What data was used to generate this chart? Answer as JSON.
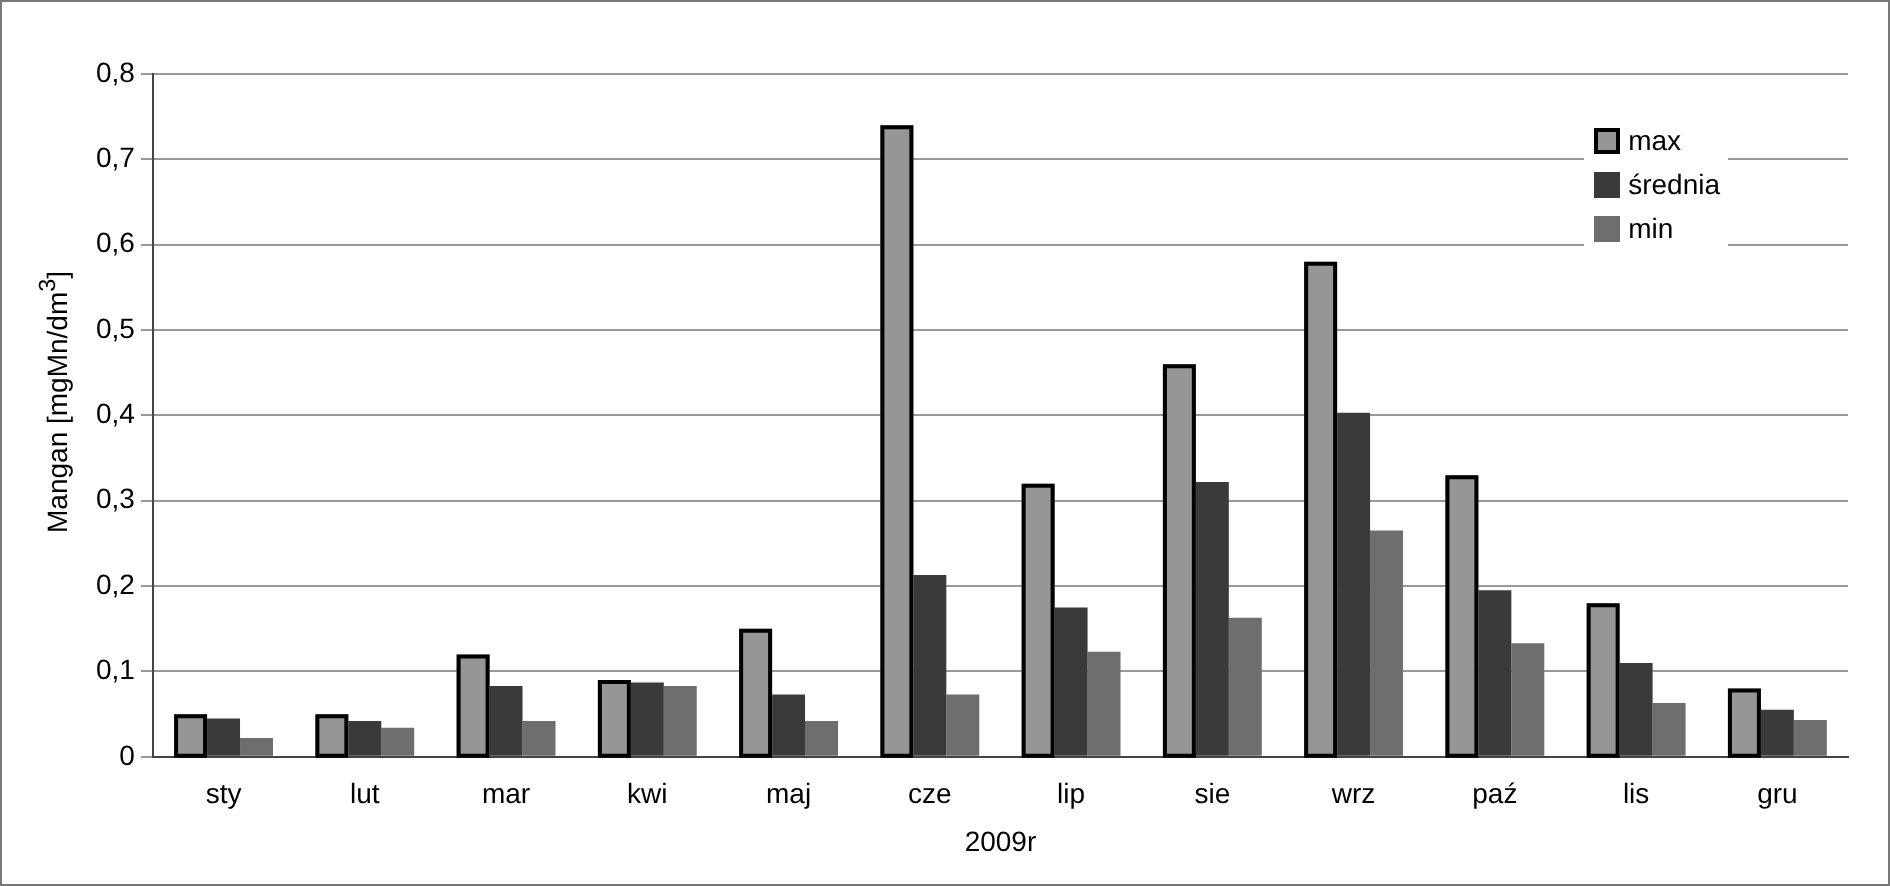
{
  "chart_data": {
    "type": "bar",
    "xlabel": "2009r",
    "ylabel": "Mangan [mgMn/dm$^{3}$]",
    "categories": [
      "sty",
      "lut",
      "mar",
      "kwi",
      "maj",
      "cze",
      "lip",
      "sie",
      "wrz",
      "paź",
      "lis",
      "gru"
    ],
    "series": [
      {
        "name": "max",
        "color": "#969696",
        "values": [
          0.05,
          0.05,
          0.12,
          0.09,
          0.15,
          0.74,
          0.32,
          0.46,
          0.58,
          0.33,
          0.18,
          0.08
        ]
      },
      {
        "name": "średnia",
        "color": "#3a3a3a",
        "values": [
          0.045,
          0.042,
          0.083,
          0.087,
          0.073,
          0.213,
          0.175,
          0.322,
          0.403,
          0.195,
          0.11,
          0.055
        ]
      },
      {
        "name": "min",
        "color": "#6e6e6e",
        "values": [
          0.022,
          0.034,
          0.042,
          0.083,
          0.042,
          0.073,
          0.123,
          0.163,
          0.265,
          0.133,
          0.063,
          0.043
        ]
      }
    ],
    "ylim": [
      0,
      0.8
    ],
    "yticks": [
      0,
      {
        "value": 0.1,
        "label": "0,1"
      },
      {
        "value": 0.2,
        "label": "0,2"
      },
      {
        "value": 0.3,
        "label": "0,3"
      },
      {
        "value": 0.4,
        "label": "0,4"
      },
      {
        "value": 0.5,
        "label": "0,5"
      },
      {
        "value": 0.6,
        "label": "0,6"
      },
      {
        "value": 0.7,
        "label": "0,7"
      },
      {
        "value": 0.8,
        "label": "0,8"
      }
    ],
    "grid": "y",
    "legend": "top right"
  }
}
